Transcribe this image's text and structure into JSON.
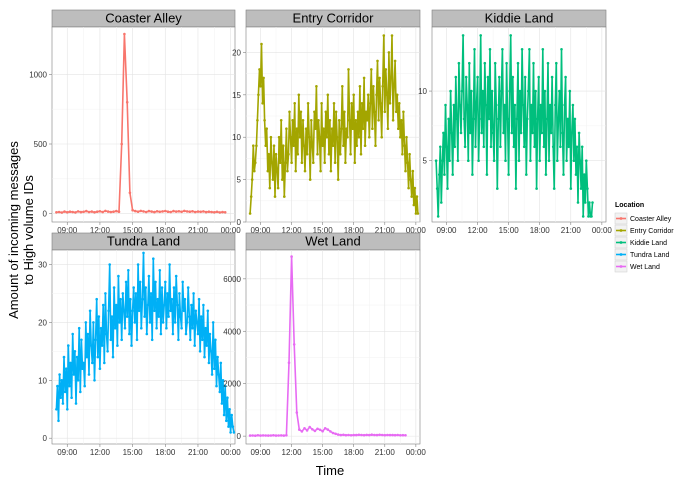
{
  "chart_data": {
    "type": "line",
    "layout": "facet_wrap",
    "xlabel": "Time",
    "ylabel_line1": "Amount of incoming messages",
    "ylabel_line2": "to High volume IDs",
    "x_ticks": [
      "09:00",
      "12:00",
      "15:00",
      "18:00",
      "21:00",
      "00:00"
    ],
    "x_tick_hours": [
      9,
      12,
      15,
      18,
      21,
      24
    ],
    "xlim_hours": [
      7.6,
      24.4
    ],
    "grid": true,
    "legend": {
      "title": "Location",
      "placement": "right",
      "entries": [
        {
          "label": "Coaster Alley",
          "color": "#F8766D"
        },
        {
          "label": "Entry Corridor",
          "color": "#A3A500"
        },
        {
          "label": "Kiddie Land",
          "color": "#00BF7D"
        },
        {
          "label": "Tundra Land",
          "color": "#00B0F6"
        },
        {
          "label": "Wet Land",
          "color": "#E76BF3"
        }
      ]
    },
    "panels": [
      {
        "name": "Coaster Alley",
        "color": "#F8766D",
        "ylim": [
          -60,
          1340
        ],
        "y_ticks": [
          0,
          500,
          1000
        ],
        "x_tick_labels_shown": true,
        "series": {
          "start_hour": 8.0,
          "step_hours": 0.25,
          "values": [
            10,
            12,
            8,
            15,
            10,
            14,
            12,
            9,
            16,
            11,
            13,
            18,
            12,
            15,
            10,
            14,
            17,
            12,
            20,
            15,
            12,
            14,
            18,
            13,
            500,
            1290,
            800,
            150,
            25,
            18,
            14,
            20,
            16,
            12,
            18,
            15,
            11,
            17,
            13,
            16,
            19,
            14,
            12,
            18,
            15,
            17,
            13,
            20,
            16,
            14,
            17,
            12,
            15,
            13,
            16,
            11,
            14,
            12,
            10,
            13,
            9,
            11,
            10
          ]
        }
      },
      {
        "name": "Entry Corridor",
        "color": "#A3A500",
        "ylim": [
          0,
          23
        ],
        "y_ticks": [
          0,
          5,
          10,
          15,
          20
        ],
        "x_tick_labels_shown": true,
        "series": {
          "start_hour": 8.0,
          "step_hours": 0.1,
          "values": [
            1,
            3,
            5,
            9,
            6,
            7,
            9,
            12,
            15,
            18,
            16,
            21,
            14,
            17,
            12,
            9,
            11,
            6,
            8,
            4,
            10,
            7,
            5,
            9,
            3,
            8,
            6,
            4,
            10,
            7,
            12,
            5,
            9,
            3,
            7,
            11,
            6,
            8,
            13,
            10,
            7,
            12,
            9,
            14,
            6,
            11,
            8,
            15,
            10,
            13,
            7,
            12,
            9,
            6,
            11,
            8,
            14,
            10,
            5,
            12,
            9,
            7,
            13,
            11,
            16,
            8,
            12,
            10,
            6,
            14,
            9,
            11,
            7,
            13,
            10,
            15,
            8,
            12,
            6,
            11,
            9,
            14,
            7,
            13,
            10,
            5,
            12,
            8,
            11,
            16,
            9,
            13,
            7,
            11,
            10,
            18,
            12,
            8,
            14,
            11,
            15,
            7,
            12,
            9,
            13,
            10,
            16,
            8,
            14,
            11,
            17,
            9,
            13,
            12,
            15,
            10,
            14,
            18,
            11,
            16,
            13,
            9,
            15,
            19,
            12,
            17,
            14,
            10,
            16,
            22,
            13,
            18,
            15,
            11,
            20,
            14,
            17,
            22,
            12,
            16,
            19,
            13,
            15,
            11,
            14,
            10,
            12,
            8,
            13,
            9,
            6,
            10,
            7,
            4,
            8,
            5,
            3,
            6,
            2,
            4,
            1,
            3,
            1
          ]
        }
      },
      {
        "name": "Kiddie Land",
        "color": "#00BF7D",
        "ylim": [
          0.6,
          14.6
        ],
        "y_ticks": [
          5,
          10
        ],
        "x_tick_labels_shown": true,
        "series": {
          "start_hour": 8.0,
          "step_hours": 0.1,
          "values": [
            5,
            3,
            1,
            4,
            6,
            2,
            5,
            7,
            4,
            9,
            6,
            3,
            8,
            5,
            10,
            7,
            4,
            9,
            6,
            11,
            8,
            5,
            12,
            9,
            7,
            10,
            14,
            8,
            6,
            11,
            9,
            5,
            12,
            7,
            10,
            4,
            8,
            13,
            6,
            9,
            11,
            5,
            8,
            14,
            7,
            10,
            6,
            12,
            9,
            4,
            11,
            8,
            13,
            6,
            10,
            7,
            5,
            12,
            9,
            3,
            8,
            11,
            6,
            10,
            13,
            7,
            9,
            5,
            12,
            8,
            4,
            10,
            14,
            7,
            11,
            6,
            9,
            3,
            8,
            12,
            5,
            10,
            7,
            13,
            9,
            6,
            11,
            4,
            8,
            10,
            13,
            5,
            9,
            7,
            12,
            6,
            10,
            3,
            8,
            11,
            5,
            9,
            7,
            13,
            6,
            10,
            4,
            8,
            12,
            5,
            9,
            7,
            11,
            6,
            3,
            9,
            12,
            5,
            8,
            10,
            6,
            13,
            7,
            4,
            9,
            11,
            5,
            8,
            6,
            10,
            3,
            7,
            9,
            5,
            8,
            4,
            6,
            2,
            7,
            5,
            3,
            6,
            1,
            4,
            2,
            5,
            3,
            1,
            2,
            1,
            1,
            2
          ]
        }
      },
      {
        "name": "Tundra Land",
        "color": "#00B0F6",
        "ylim": [
          -1,
          32.5
        ],
        "y_ticks": [
          0,
          10,
          20,
          30
        ],
        "x_tick_labels_shown": true,
        "series": {
          "start_hour": 8.0,
          "step_hours": 0.1,
          "values": [
            5,
            9,
            3,
            11,
            7,
            10,
            6,
            14,
            8,
            12,
            5,
            16,
            9,
            13,
            7,
            18,
            11,
            15,
            6,
            14,
            10,
            19,
            8,
            17,
            12,
            13,
            9,
            20,
            14,
            18,
            11,
            22,
            16,
            13,
            20,
            10,
            17,
            24,
            14,
            21,
            12,
            19,
            16,
            23,
            13,
            25,
            18,
            15,
            22,
            30,
            17,
            21,
            14,
            26,
            19,
            23,
            16,
            28,
            20,
            24,
            17,
            25,
            22,
            19,
            27,
            21,
            29,
            18,
            24,
            16,
            22,
            26,
            20,
            25,
            17,
            30,
            22,
            27,
            19,
            24,
            32,
            21,
            26,
            18,
            23,
            28,
            20,
            25,
            17,
            31,
            22,
            27,
            19,
            24,
            21,
            29,
            18,
            26,
            20,
            23,
            27,
            19,
            25,
            21,
            30,
            22,
            24,
            18,
            26,
            20,
            28,
            23,
            17,
            25,
            21,
            19,
            27,
            22,
            24,
            18,
            20,
            26,
            21,
            17,
            23,
            19,
            25,
            16,
            22,
            20,
            18,
            24,
            15,
            21,
            17,
            23,
            14,
            19,
            16,
            22,
            13,
            18,
            15,
            11,
            20,
            12,
            17,
            9,
            14,
            11,
            8,
            13,
            6,
            10,
            4,
            9,
            3,
            7,
            2,
            5,
            1,
            4,
            2,
            1
          ]
        }
      },
      {
        "name": "Wet Land",
        "color": "#E76BF3",
        "ylim": [
          -300,
          7100
        ],
        "y_ticks": [
          0,
          2000,
          4000,
          6000
        ],
        "x_tick_labels_shown": true,
        "series": {
          "start_hour": 8.0,
          "step_hours": 0.25,
          "values": [
            20,
            25,
            18,
            30,
            22,
            28,
            24,
            20,
            26,
            30,
            22,
            25,
            28,
            20,
            30,
            2800,
            6850,
            3500,
            900,
            250,
            180,
            300,
            220,
            350,
            260,
            200,
            280,
            240,
            190,
            300,
            250,
            180,
            120,
            90,
            60,
            40,
            50,
            35,
            45,
            30,
            40,
            38,
            50,
            42,
            36,
            48,
            40,
            55,
            45,
            38,
            50,
            42,
            36,
            44,
            40,
            38,
            35,
            42,
            30,
            36,
            32
          ]
        }
      }
    ]
  }
}
